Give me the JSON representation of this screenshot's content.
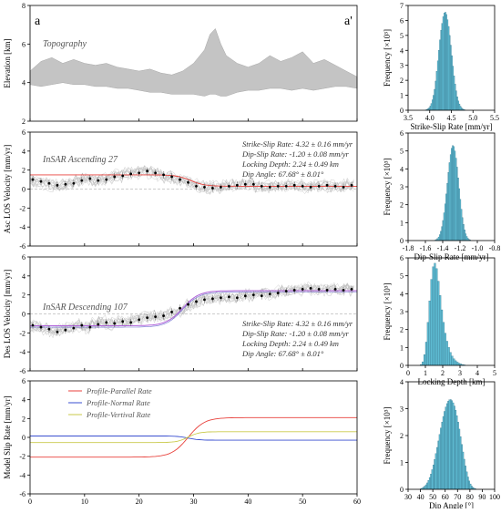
{
  "figure": {
    "corner_left": "a",
    "corner_right": "a'"
  },
  "chart_data": [
    {
      "id": "topo",
      "type": "area",
      "ylabel": "Elevation [km]",
      "annotation": "Topography",
      "xlim": [
        0,
        60
      ],
      "ylim": [
        2,
        8
      ],
      "yticks": [
        "2",
        "4",
        "6",
        "8"
      ],
      "x": [
        0,
        2,
        4,
        6,
        8,
        10,
        12,
        14,
        16,
        18,
        20,
        22,
        24,
        26,
        28,
        30,
        32,
        33,
        34,
        35,
        36,
        38,
        40,
        42,
        44,
        46,
        48,
        50,
        52,
        54,
        56,
        58,
        60
      ],
      "upper": [
        4.6,
        5.1,
        5.3,
        5.0,
        5.2,
        5.0,
        4.9,
        5.0,
        4.8,
        4.7,
        4.6,
        4.7,
        4.5,
        4.4,
        4.6,
        5.0,
        5.7,
        6.5,
        6.8,
        6.0,
        5.4,
        5.0,
        4.8,
        5.0,
        5.4,
        5.1,
        5.3,
        5.6,
        5.0,
        5.2,
        4.9,
        4.6,
        4.3
      ],
      "lower": [
        3.9,
        3.8,
        3.9,
        4.0,
        3.9,
        3.9,
        3.8,
        3.8,
        3.7,
        3.7,
        3.6,
        3.5,
        3.5,
        3.4,
        3.4,
        3.4,
        3.3,
        3.4,
        3.4,
        3.3,
        3.3,
        3.5,
        3.6,
        3.6,
        3.7,
        3.7,
        3.6,
        3.7,
        3.6,
        3.7,
        3.8,
        3.8,
        3.7
      ]
    },
    {
      "id": "asc",
      "type": "scatter",
      "ylabel": "Asc LOS Velocity [mm/yr]",
      "annotation": "InSAR Ascending 27",
      "xlim": [
        0,
        60
      ],
      "ylim": [
        -6,
        6
      ],
      "yticks": [
        "-6",
        "-4",
        "-2",
        "0",
        "2",
        "4",
        "6"
      ],
      "stats": [
        "Strike-Slip Rate: 4.32 ± 0.16 mm/yr",
        "Dip-Slip Rate: -1.20 ± 0.08 mm/yr",
        "Locking Depth: 2.24 ± 0.49 km",
        "Dip Angle: 67.68° ± 8.01°"
      ],
      "model": {
        "x0": 29.5,
        "w": 1.3,
        "left": 1.5,
        "right": 0.3
      },
      "points": [
        [
          0.5,
          1.0
        ],
        [
          2,
          0.8
        ],
        [
          3.5,
          0.6
        ],
        [
          5,
          0.4
        ],
        [
          6.5,
          0.5
        ],
        [
          8,
          0.6
        ],
        [
          9.5,
          0.9
        ],
        [
          11,
          1.1
        ],
        [
          12.5,
          0.9
        ],
        [
          14,
          1.0
        ],
        [
          15.5,
          1.3
        ],
        [
          17,
          1.4
        ],
        [
          18.5,
          1.6
        ],
        [
          20,
          1.7
        ],
        [
          21.5,
          1.9
        ],
        [
          23,
          1.7
        ],
        [
          24.5,
          1.5
        ],
        [
          26,
          1.3
        ],
        [
          27.5,
          1.0
        ],
        [
          29,
          0.7
        ],
        [
          30.5,
          0.3
        ],
        [
          32,
          0.2
        ],
        [
          33.5,
          0.1
        ],
        [
          35,
          0.2
        ],
        [
          36.5,
          0.3
        ],
        [
          38,
          0.4
        ],
        [
          39.5,
          0.5
        ],
        [
          41,
          0.5
        ],
        [
          42.5,
          0.3
        ],
        [
          44,
          0.2
        ],
        [
          45.5,
          0.3
        ],
        [
          47,
          0.3
        ],
        [
          48.5,
          0.4
        ],
        [
          50,
          0.3
        ],
        [
          51.5,
          0.2
        ],
        [
          53,
          0.3
        ],
        [
          54.5,
          0.4
        ],
        [
          56,
          0.3
        ],
        [
          57.5,
          0.2
        ],
        [
          59,
          0.4
        ]
      ]
    },
    {
      "id": "des",
      "type": "scatter",
      "ylabel": "Des LOS Velocity [mm/yr]",
      "annotation": "InSAR Descending 107",
      "xlim": [
        0,
        60
      ],
      "ylim": [
        -6,
        6
      ],
      "yticks": [
        "-6",
        "-4",
        "-2",
        "0",
        "2",
        "4",
        "6"
      ],
      "stats": [
        "Strike-Slip Rate: 4.32 ± 0.16 mm/yr",
        "Dip-Slip Rate: -1.20 ± 0.08 mm/yr",
        "Locking Depth: 2.24 ± 0.49 km",
        "Dip Angle: 67.68° ± 8.01°"
      ],
      "model": {
        "x0": 28.0,
        "w": 1.5,
        "left": -1.3,
        "right": 2.4
      },
      "points": [
        [
          0.5,
          -1.2
        ],
        [
          2,
          -1.4
        ],
        [
          3.5,
          -1.6
        ],
        [
          5,
          -1.9
        ],
        [
          6.5,
          -1.7
        ],
        [
          8,
          -1.5
        ],
        [
          9.5,
          -1.2
        ],
        [
          11,
          -1.4
        ],
        [
          12.5,
          -1.1
        ],
        [
          14,
          -0.9
        ],
        [
          15.5,
          -1.0
        ],
        [
          17,
          -0.8
        ],
        [
          18.5,
          -0.9
        ],
        [
          20,
          -0.6
        ],
        [
          21.5,
          -0.4
        ],
        [
          23,
          -0.3
        ],
        [
          24.5,
          -0.2
        ],
        [
          26,
          0.2
        ],
        [
          27.5,
          0.6
        ],
        [
          29,
          1.0
        ],
        [
          30.5,
          1.3
        ],
        [
          32,
          1.5
        ],
        [
          33.5,
          1.6
        ],
        [
          35,
          1.7
        ],
        [
          36.5,
          1.8
        ],
        [
          38,
          1.7
        ],
        [
          39.5,
          1.9
        ],
        [
          41,
          2.0
        ],
        [
          42.5,
          1.9
        ],
        [
          44,
          2.1
        ],
        [
          45.5,
          2.2
        ],
        [
          47,
          2.4
        ],
        [
          48.5,
          2.5
        ],
        [
          50,
          2.6
        ],
        [
          51.5,
          2.7
        ],
        [
          53,
          2.6
        ],
        [
          54.5,
          2.5
        ],
        [
          56,
          2.6
        ],
        [
          57.5,
          2.5
        ],
        [
          59,
          2.6
        ]
      ]
    },
    {
      "id": "slip",
      "type": "line",
      "ylabel": "Model Slip Rate [mm/yr]",
      "xlim": [
        0,
        60
      ],
      "ylim": [
        -6,
        6
      ],
      "xticks": [
        "0",
        "10",
        "20",
        "30",
        "40",
        "50",
        "60"
      ],
      "yticks": [
        "-6",
        "-4",
        "-2",
        "0",
        "2",
        "4",
        "6"
      ],
      "series": [
        {
          "name": "Profile-Parallel Rate",
          "color": "#e8413c",
          "x0": 29.0,
          "w": 1.5,
          "left": -2.1,
          "right": 2.1
        },
        {
          "name": "Profile-Normal Rate",
          "color": "#3a4fd0",
          "x0": 29.0,
          "w": 1.0,
          "left": 0.15,
          "right": -0.3
        },
        {
          "name": "Profile-Vertival Rate",
          "color": "#c9c94a",
          "x0": 29.0,
          "w": 1.0,
          "left": -0.55,
          "right": 0.6
        }
      ]
    },
    {
      "id": "hist_strike",
      "type": "bar",
      "xlabel": "Strike-Slip Rate [mm/yr]",
      "ylabel": "Frequency [×10³]",
      "xlim": [
        3.5,
        5.5
      ],
      "ylim": [
        0,
        7
      ],
      "xticks": [
        "3.5",
        "4.0",
        "4.5",
        "5.0",
        "5.5"
      ],
      "yticks": [
        "0",
        "1",
        "2",
        "3",
        "4",
        "5",
        "6",
        "7"
      ],
      "bin_start": 3.9,
      "bin_width": 0.025,
      "values": [
        0.03,
        0.06,
        0.1,
        0.17,
        0.28,
        0.45,
        0.7,
        1.0,
        1.4,
        1.95,
        2.6,
        3.3,
        4.0,
        4.7,
        5.35,
        5.8,
        6.25,
        6.5,
        6.55,
        6.4,
        6.05,
        5.6,
        5.0,
        4.35,
        3.65,
        2.95,
        2.3,
        1.75,
        1.3,
        0.9,
        0.62,
        0.42,
        0.27,
        0.16,
        0.09,
        0.05,
        0.03
      ]
    },
    {
      "id": "hist_dip",
      "type": "bar",
      "xlabel": "Dip-Slip Rate [mm/yr]",
      "ylabel": "Frequency [×10³]",
      "xlim": [
        -1.8,
        -0.8
      ],
      "ylim": [
        0,
        6
      ],
      "xticks": [
        "-1.8",
        "-1.6",
        "-1.4",
        "-1.2",
        "-1.0",
        "-0.8"
      ],
      "yticks": [
        "0",
        "1",
        "2",
        "3",
        "4",
        "5",
        "6"
      ],
      "bin_start": -1.49,
      "bin_width": 0.0125,
      "values": [
        0.03,
        0.06,
        0.11,
        0.2,
        0.33,
        0.52,
        0.78,
        1.12,
        1.55,
        2.05,
        2.6,
        3.2,
        3.8,
        4.35,
        4.8,
        5.15,
        5.3,
        5.25,
        5.0,
        4.6,
        4.1,
        3.5,
        2.9,
        2.3,
        1.75,
        1.28,
        0.9,
        0.6,
        0.38,
        0.23,
        0.13,
        0.07,
        0.04
      ]
    },
    {
      "id": "hist_lock",
      "type": "bar",
      "xlabel": "Locking Depth [km]",
      "ylabel": "Frequency [×10³]",
      "xlim": [
        0,
        5
      ],
      "ylim": [
        0,
        6
      ],
      "xticks": [
        "0",
        "1",
        "2",
        "3",
        "4",
        "5"
      ],
      "yticks": [
        "0",
        "1",
        "2",
        "3",
        "4",
        "5",
        "6"
      ],
      "bin_start": 0.7,
      "bin_width": 0.1,
      "values": [
        0.05,
        0.2,
        0.6,
        1.3,
        2.4,
        3.6,
        4.8,
        5.5,
        5.7,
        5.4,
        4.7,
        3.9,
        3.1,
        2.4,
        1.8,
        1.35,
        1.0,
        0.72,
        0.52,
        0.37,
        0.26,
        0.18,
        0.12,
        0.08,
        0.05,
        0.03
      ]
    },
    {
      "id": "hist_angle",
      "type": "bar",
      "xlabel": "Dip Angle [°]",
      "ylabel": "Frequency [×10³]",
      "xlim": [
        30,
        100
      ],
      "ylim": [
        0,
        4
      ],
      "xticks": [
        "30",
        "40",
        "50",
        "60",
        "70",
        "80",
        "90",
        "100"
      ],
      "yticks": [
        "0",
        "1",
        "2",
        "3",
        "4"
      ],
      "bin_start": 40,
      "bin_width": 1.0,
      "values": [
        0.03,
        0.05,
        0.08,
        0.12,
        0.17,
        0.24,
        0.33,
        0.44,
        0.57,
        0.73,
        0.91,
        1.11,
        1.33,
        1.56,
        1.8,
        2.04,
        2.28,
        2.5,
        2.71,
        2.9,
        3.06,
        3.19,
        3.28,
        3.33,
        3.34,
        3.3,
        3.22,
        3.1,
        2.94,
        2.74,
        2.5,
        2.24,
        1.96,
        1.67,
        1.39,
        1.12,
        0.87,
        0.65,
        0.46,
        0.31,
        0.2,
        0.12,
        0.07,
        0.04,
        0.02
      ]
    }
  ]
}
